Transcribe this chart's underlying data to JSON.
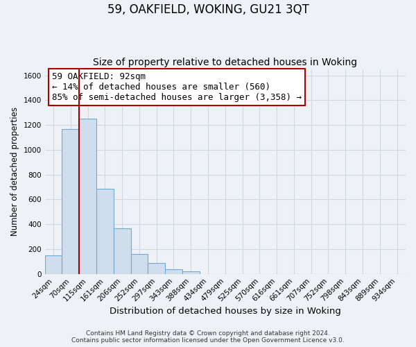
{
  "title": "59, OAKFIELD, WOKING, GU21 3QT",
  "subtitle": "Size of property relative to detached houses in Woking",
  "xlabel": "Distribution of detached houses by size in Woking",
  "ylabel": "Number of detached properties",
  "footer_line1": "Contains HM Land Registry data © Crown copyright and database right 2024.",
  "footer_line2": "Contains public sector information licensed under the Open Government Licence v3.0.",
  "bar_labels": [
    "24sqm",
    "70sqm",
    "115sqm",
    "161sqm",
    "206sqm",
    "252sqm",
    "297sqm",
    "343sqm",
    "388sqm",
    "434sqm",
    "479sqm",
    "525sqm",
    "570sqm",
    "616sqm",
    "661sqm",
    "707sqm",
    "752sqm",
    "798sqm",
    "843sqm",
    "889sqm",
    "934sqm"
  ],
  "bar_values": [
    150,
    1165,
    1250,
    685,
    370,
    160,
    90,
    35,
    20,
    0,
    0,
    0,
    0,
    0,
    0,
    0,
    0,
    0,
    0,
    0,
    0
  ],
  "bar_color": "#cfdded",
  "bar_edge_color": "#6daad5",
  "ylim": [
    0,
    1650
  ],
  "yticks": [
    0,
    200,
    400,
    600,
    800,
    1000,
    1200,
    1400,
    1600
  ],
  "vline_x_bin": 1.5,
  "vline_color": "#990000",
  "annotation_title": "59 OAKFIELD: 92sqm",
  "annotation_line1": "← 14% of detached houses are smaller (560)",
  "annotation_line2": "85% of semi-detached houses are larger (3,358) →",
  "annotation_box_color": "#ffffff",
  "annotation_box_edge": "#aa0000",
  "bg_color": "#eef2f7",
  "grid_color": "#d0d8e4",
  "title_fontsize": 12,
  "subtitle_fontsize": 10,
  "xlabel_fontsize": 9.5,
  "ylabel_fontsize": 8.5,
  "tick_fontsize": 7.5,
  "annotation_fontsize": 9
}
